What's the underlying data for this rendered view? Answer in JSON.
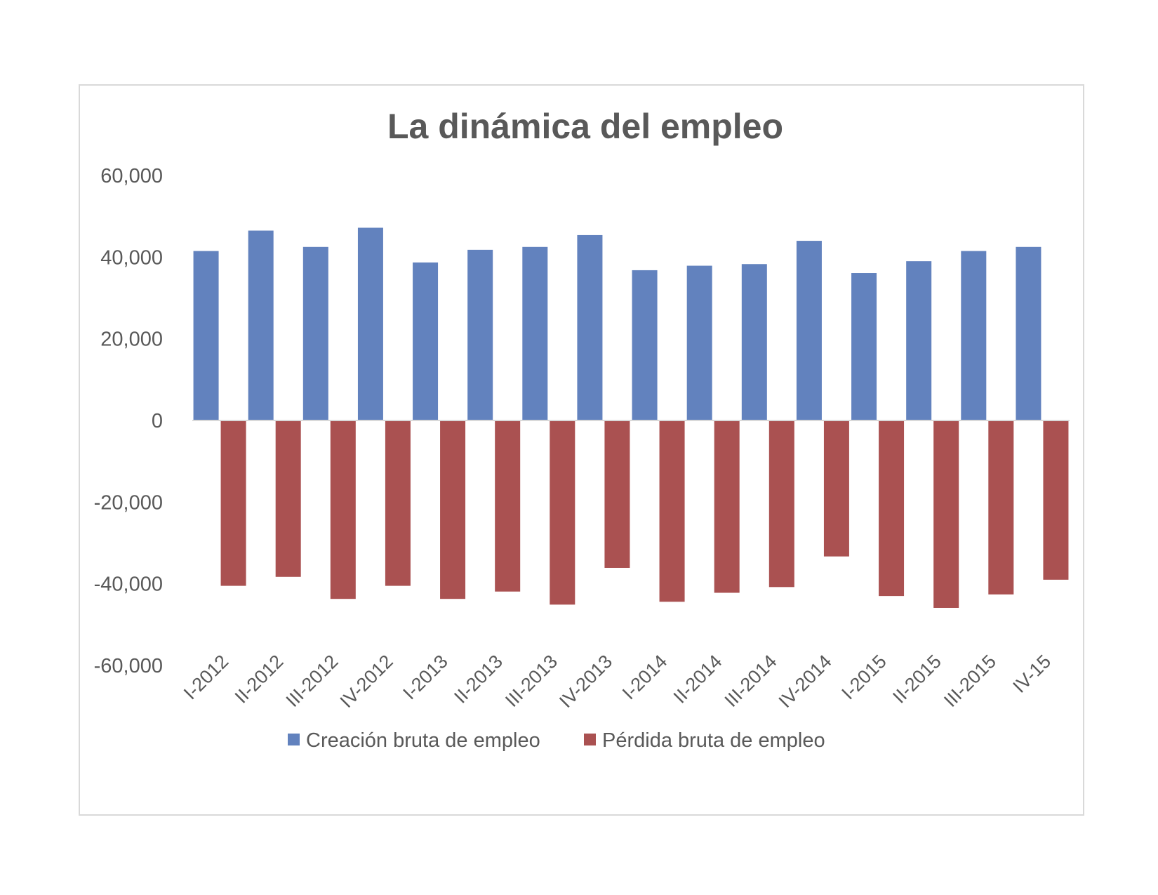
{
  "chart_data": {
    "type": "bar",
    "title": "La dinámica del empleo",
    "xlabel": "",
    "ylabel": "",
    "ylim": [
      -60000,
      60000
    ],
    "yticks": [
      60000,
      40000,
      20000,
      0,
      -20000,
      -40000,
      -60000
    ],
    "ytick_labels": [
      "60,000",
      "40,000",
      "20,000",
      "0",
      "-20,000",
      "-40,000",
      "-60,000"
    ],
    "categories": [
      "I-2012",
      "II-2012",
      "III-2012",
      "IV-2012",
      "I-2013",
      "II-2013",
      "III-2013",
      "IV-2013",
      "I-2014",
      "II-2014",
      "III-2014",
      "IV-2014",
      "I-2015",
      "II-2015",
      "III-2015",
      "IV-15"
    ],
    "series": [
      {
        "name": "Creación bruta de empleo",
        "color": "#6282BE",
        "values": [
          41500,
          46500,
          42500,
          47200,
          38700,
          41800,
          42500,
          45400,
          36800,
          37900,
          38300,
          44000,
          36100,
          39000,
          41500,
          42500
        ]
      },
      {
        "name": "Pérdida bruta de empleo",
        "color": "#AA5151",
        "values": [
          -40500,
          -38300,
          -43700,
          -40500,
          -43700,
          -41900,
          -45100,
          -36100,
          -44400,
          -42200,
          -40800,
          -33300,
          -43000,
          -45900,
          -42600,
          -39000
        ]
      }
    ],
    "grid": false,
    "legend_position": "bottom"
  }
}
